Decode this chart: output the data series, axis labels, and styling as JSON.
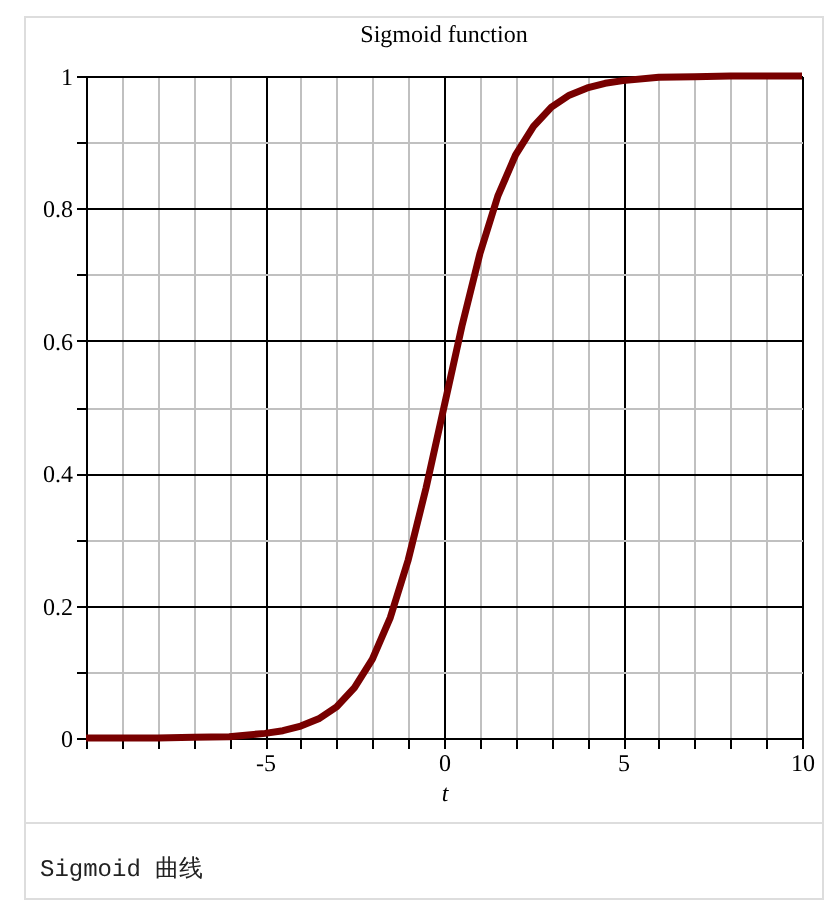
{
  "chart_data": {
    "type": "line",
    "title": "Sigmoid function",
    "xlabel": "t",
    "annotations": [
      "Sigmoid 曲线"
    ],
    "x": [
      -10,
      -9,
      -8,
      -7,
      -6,
      -5,
      -4.5,
      -4,
      -3.5,
      -3,
      -2.5,
      -2,
      -1.5,
      -1,
      -0.5,
      0,
      0.5,
      1,
      1.5,
      2,
      2.5,
      3,
      3.5,
      4,
      4.5,
      5,
      6,
      7,
      8,
      9,
      10
    ],
    "series": [
      {
        "color": "#780000",
        "values": [
          0,
          0,
          0,
          0.001,
          0.002,
          0.007,
          0.011,
          0.018,
          0.029,
          0.047,
          0.076,
          0.119,
          0.182,
          0.269,
          0.378,
          0.5,
          0.622,
          0.731,
          0.818,
          0.881,
          0.924,
          0.953,
          0.971,
          0.982,
          0.989,
          0.993,
          0.998,
          0.999,
          1,
          1,
          1
        ]
      }
    ],
    "xlim": [
      -10,
      10
    ],
    "ylim": [
      0,
      1
    ],
    "xticks": [
      {
        "value": -10,
        "label": null
      },
      {
        "value": -9,
        "label": null
      },
      {
        "value": -8,
        "label": null
      },
      {
        "value": -7,
        "label": null
      },
      {
        "value": -6,
        "label": null
      },
      -5,
      {
        "value": -4,
        "label": null
      },
      {
        "value": -3,
        "label": null
      },
      {
        "value": -2,
        "label": null
      },
      {
        "value": -1,
        "label": null
      },
      0,
      {
        "value": 1,
        "label": null
      },
      {
        "value": 2,
        "label": null
      },
      {
        "value": 3,
        "label": null
      },
      {
        "value": 4,
        "label": null
      },
      5,
      {
        "value": 6,
        "label": null
      },
      {
        "value": 7,
        "label": null
      },
      {
        "value": 8,
        "label": null
      },
      {
        "value": 9,
        "label": null
      },
      10
    ],
    "yticks": [
      0,
      {
        "value": 0.1,
        "label": null
      },
      0.2,
      {
        "value": 0.3,
        "label": null
      },
      0.4,
      {
        "value": 0.5,
        "label": null
      },
      0.6,
      {
        "value": 0.7,
        "label": null
      },
      0.8,
      {
        "value": 0.9,
        "label": null
      },
      1
    ],
    "grid": true,
    "marker": "none",
    "line_style": "solid"
  }
}
